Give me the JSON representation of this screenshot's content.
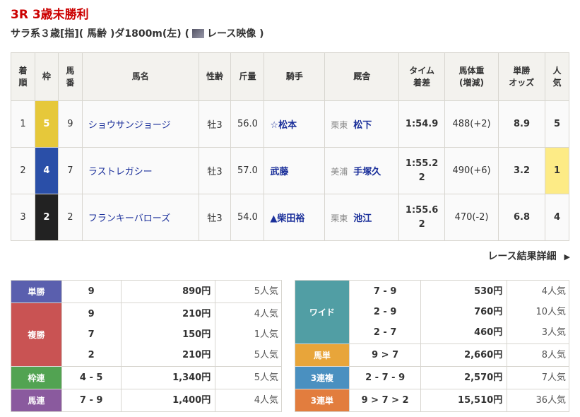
{
  "race": {
    "title": "3R 3歳未勝利",
    "conditions_before": "サラ系３歳[指]( 馬齢 )ダ1800m(左) (",
    "video_label": "レース映像",
    "conditions_after": ")"
  },
  "headers": [
    "着順",
    "枠",
    "馬番",
    "馬名",
    "性齢",
    "斤量",
    "騎手",
    "厩舎",
    "タイム着差",
    "馬体重(増減)",
    "単勝オッズ",
    "人気"
  ],
  "header_lines": [
    [
      "着",
      "順"
    ],
    [
      "枠"
    ],
    [
      "馬",
      "番"
    ],
    [
      "馬名"
    ],
    [
      "性齢"
    ],
    [
      "斤量"
    ],
    [
      "騎手"
    ],
    [
      "厩舎"
    ],
    [
      "タイム",
      "着差"
    ],
    [
      "馬体重",
      "(増減)"
    ],
    [
      "単勝",
      "オッズ"
    ],
    [
      "人",
      "気"
    ]
  ],
  "rows": [
    {
      "rank": "1",
      "frame": "5",
      "frame_color": "#e6c83a",
      "num": "9",
      "name": "ショウサンジョージ",
      "sexage": "牡3",
      "weight": "56.0",
      "jockey": "☆松本",
      "region": "栗東",
      "trainer": "松下",
      "time": "1:54.9",
      "margin": "",
      "body": "488(+2)",
      "odds": "8.9",
      "pop": "5",
      "pop_highlight": false
    },
    {
      "rank": "2",
      "frame": "4",
      "frame_color": "#2a4fa8",
      "num": "7",
      "name": "ラストレガシー",
      "sexage": "牡3",
      "weight": "57.0",
      "jockey": "武藤",
      "region": "美浦",
      "trainer": "手塚久",
      "time": "1:55.2",
      "margin": "2",
      "body": "490(+6)",
      "odds": "3.2",
      "pop": "1",
      "pop_highlight": true
    },
    {
      "rank": "3",
      "frame": "2",
      "frame_color": "#222222",
      "num": "2",
      "name": "フランキーバローズ",
      "sexage": "牡3",
      "weight": "54.0",
      "jockey": "▲柴田裕",
      "region": "栗東",
      "trainer": "池江",
      "time": "1:55.6",
      "margin": "2",
      "body": "470(-2)",
      "odds": "6.8",
      "pop": "4",
      "pop_highlight": false
    }
  ],
  "detail_link": "レース結果詳細",
  "payouts_left": [
    {
      "type": "単勝",
      "color": "#5a5fae",
      "entries": [
        {
          "combo": "9",
          "amount": "890円",
          "pop": "5人気"
        }
      ]
    },
    {
      "type": "複勝",
      "color": "#c95353",
      "entries": [
        {
          "combo": "9",
          "amount": "210円",
          "pop": "4人気"
        },
        {
          "combo": "7",
          "amount": "150円",
          "pop": "1人気"
        },
        {
          "combo": "2",
          "amount": "210円",
          "pop": "5人気"
        }
      ]
    },
    {
      "type": "枠連",
      "color": "#52a352",
      "entries": [
        {
          "combo": "4 - 5",
          "amount": "1,340円",
          "pop": "5人気"
        }
      ]
    },
    {
      "type": "馬連",
      "color": "#8a5a9e",
      "entries": [
        {
          "combo": "7 - 9",
          "amount": "1,400円",
          "pop": "4人気"
        }
      ]
    }
  ],
  "payouts_right": [
    {
      "type": "ワイド",
      "color": "#519ea4",
      "entries": [
        {
          "combo": "7 - 9",
          "amount": "530円",
          "pop": "4人気"
        },
        {
          "combo": "2 - 9",
          "amount": "760円",
          "pop": "10人気"
        },
        {
          "combo": "2 - 7",
          "amount": "460円",
          "pop": "3人気"
        }
      ]
    },
    {
      "type": "馬単",
      "color": "#e8a53a",
      "entries": [
        {
          "combo": "9 > 7",
          "amount": "2,660円",
          "pop": "8人気"
        }
      ]
    },
    {
      "type": "3連複",
      "color": "#4a90c0",
      "entries": [
        {
          "combo": "2 - 7 - 9",
          "amount": "2,570円",
          "pop": "7人気"
        }
      ]
    },
    {
      "type": "3連単",
      "color": "#e27d3e",
      "entries": [
        {
          "combo": "9 > 7 > 2",
          "amount": "15,510円",
          "pop": "36人気"
        }
      ]
    }
  ]
}
